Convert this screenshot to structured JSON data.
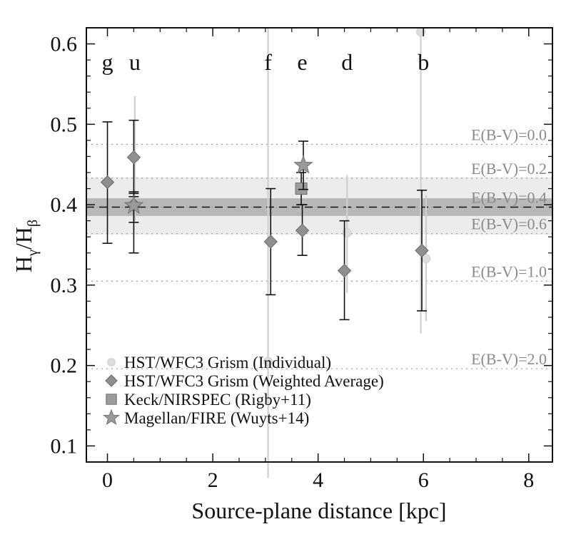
{
  "chart_data": {
    "type": "scatter",
    "xlabel": "Source-plane distance [kpc]",
    "ylabel_main": "H",
    "ylabel_sub1": "γ",
    "ylabel_sep": "/H",
    "ylabel_sub2": "β",
    "xlim": [
      -0.4,
      8.45
    ],
    "ylim": [
      0.08,
      0.62
    ],
    "xticks": [
      0,
      2,
      4,
      6,
      8
    ],
    "xtick_labels": [
      "0",
      "2",
      "4",
      "6",
      "8"
    ],
    "yticks": [
      0.1,
      0.2,
      0.3,
      0.4,
      0.5,
      0.6
    ],
    "ytick_labels": [
      "0.1",
      "0.2",
      "0.3",
      "0.4",
      "0.5",
      "0.6"
    ],
    "region_labels": [
      {
        "label": "g",
        "x": 0.0
      },
      {
        "label": "u",
        "x": 0.52
      },
      {
        "label": "f",
        "x": 3.05
      },
      {
        "label": "e",
        "x": 3.7
      },
      {
        "label": "d",
        "x": 4.55
      },
      {
        "label": "b",
        "x": 6.0
      }
    ],
    "intrinsic_value": 0.397,
    "inner_band": [
      0.386,
      0.408
    ],
    "outer_band": [
      0.363,
      0.434
    ],
    "extinction_lines": [
      {
        "label": "E(B-V)=0.0",
        "y": 0.475
      },
      {
        "label": "E(B-V)=0.2",
        "y": 0.433
      },
      {
        "label": "E(B-V)=0.4",
        "y": 0.397
      },
      {
        "label": "E(B-V)=0.6",
        "y": 0.364
      },
      {
        "label": "E(B-V)=1.0",
        "y": 0.305
      },
      {
        "label": "E(B-V)=2.0",
        "y": 0.196
      }
    ],
    "series": [
      {
        "name": "HST/WFC3 Grism (Individual)",
        "marker": "circle",
        "points": [
          {
            "x": 0.52,
            "y": 0.458,
            "ylo": 0.38,
            "yhi": 0.535
          },
          {
            "x": 3.05,
            "y": 0.205,
            "ylo": 0.06,
            "yhi": 0.62
          },
          {
            "x": 4.55,
            "y": 0.365,
            "ylo": 0.29,
            "yhi": 0.437
          },
          {
            "x": 5.95,
            "y": 0.615,
            "ylo": 0.24,
            "yhi": 0.62
          },
          {
            "x": 6.05,
            "y": 0.333,
            "ylo": 0.255,
            "yhi": 0.412
          }
        ]
      },
      {
        "name": "HST/WFC3 Grism (Weighted Average)",
        "marker": "diamond",
        "points": [
          {
            "x": 0.0,
            "y": 0.428,
            "ylo": 0.352,
            "yhi": 0.503
          },
          {
            "x": 0.5,
            "y": 0.459,
            "ylo": 0.414,
            "yhi": 0.505
          },
          {
            "x": 0.5,
            "y": 0.4,
            "ylo": 0.34,
            "yhi": 0.41
          },
          {
            "x": 3.1,
            "y": 0.354,
            "ylo": 0.288,
            "yhi": 0.42
          },
          {
            "x": 3.7,
            "y": 0.368,
            "ylo": 0.337,
            "yhi": 0.4
          },
          {
            "x": 4.5,
            "y": 0.318,
            "ylo": 0.257,
            "yhi": 0.38
          },
          {
            "x": 5.97,
            "y": 0.343,
            "ylo": 0.268,
            "yhi": 0.418
          }
        ]
      },
      {
        "name": "Keck/NIRSPEC (Rigby+11)",
        "marker": "square",
        "points": [
          {
            "x": 3.68,
            "y": 0.42,
            "ylo": 0.4,
            "yhi": 0.44
          }
        ]
      },
      {
        "name": "Magellan/FIRE (Wuyts+14)",
        "marker": "star",
        "points": [
          {
            "x": 0.5,
            "y": 0.399,
            "ylo": 0.378,
            "yhi": 0.416
          },
          {
            "x": 3.72,
            "y": 0.449,
            "ylo": 0.419,
            "yhi": 0.479
          }
        ]
      }
    ],
    "legend_position": "bottom-left"
  }
}
